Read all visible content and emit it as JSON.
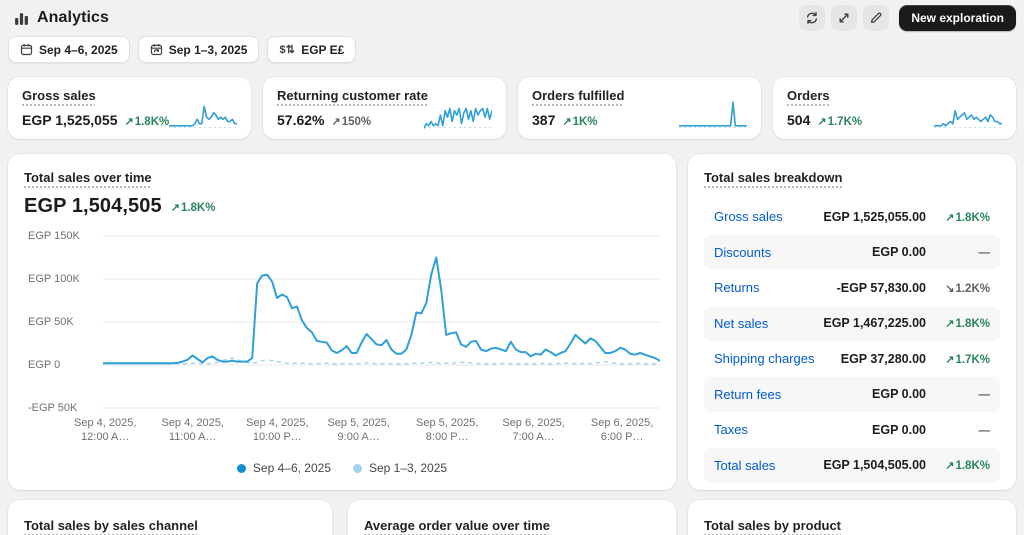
{
  "header": {
    "title": "Analytics",
    "new_exploration_label": "New exploration",
    "icons": [
      "refresh-icon",
      "expand-icon",
      "edit-icon"
    ]
  },
  "filters": [
    {
      "icon": "calendar-icon",
      "label": "Sep 4–6, 2025"
    },
    {
      "icon": "calendar-compare-icon",
      "label": "Sep 1–3, 2025"
    },
    {
      "icon": "currency-icon",
      "icon_glyph": "$⇅",
      "label": "EGP E£"
    }
  ],
  "metrics": [
    {
      "title": "Gross sales",
      "value": "EGP 1,525,055",
      "delta": {
        "dir": "up",
        "text": "1.8K%",
        "color": "green"
      },
      "spark": [
        1,
        1,
        1,
        1,
        1,
        1,
        1,
        1,
        1,
        1,
        1,
        2,
        4,
        2,
        2,
        10,
        5,
        4,
        5,
        7,
        6,
        4,
        5,
        4,
        5,
        3,
        3,
        4,
        2,
        2
      ]
    },
    {
      "title": "Returning customer rate",
      "value": "57.62%",
      "delta": {
        "dir": "up",
        "text": "150%",
        "color": "gray"
      },
      "spark": [
        0,
        2,
        1,
        3,
        1,
        2,
        1,
        6,
        1,
        8,
        5,
        9,
        3,
        8,
        6,
        9,
        2,
        7,
        9,
        4,
        8,
        3,
        9,
        6,
        8,
        9,
        5,
        9,
        4,
        8
      ]
    },
    {
      "title": "Orders fulfilled",
      "value": "387",
      "delta": {
        "dir": "up",
        "text": "1K%",
        "color": "green"
      },
      "spark": [
        1,
        1,
        1,
        1,
        1,
        1,
        1,
        1,
        1,
        1,
        1,
        1,
        1,
        1,
        1,
        1,
        1,
        1,
        1,
        1,
        1,
        1,
        1,
        12,
        1,
        1,
        1,
        1,
        1,
        1
      ]
    },
    {
      "title": "Orders",
      "value": "504",
      "delta": {
        "dir": "up",
        "text": "1.7K%",
        "color": "green"
      },
      "spark": [
        1,
        1,
        1,
        1,
        2,
        1,
        2,
        3,
        2,
        8,
        4,
        5,
        6,
        7,
        4,
        5,
        6,
        4,
        5,
        4,
        3,
        4,
        5,
        3,
        6,
        5,
        3,
        3,
        2,
        2
      ]
    }
  ],
  "main_chart": {
    "title": "Total sales over time",
    "value": "EGP 1,504,505",
    "delta": {
      "dir": "up",
      "text": "1.8K%",
      "color": "green"
    }
  },
  "chart_data": {
    "type": "line",
    "title": "Total sales over time",
    "ylabel": "EGP",
    "ylim_egp": [
      -51000,
      158000
    ],
    "grid": true,
    "y_ticks": [
      "EGP 150K",
      "EGP 100K",
      "EGP 50K",
      "EGP 0",
      "-EGP 50K"
    ],
    "y_tick_values_egp": [
      150000,
      100000,
      50000,
      0,
      -50000
    ],
    "x_ticks": [
      {
        "line1": "Sep 4, 2025,",
        "line2": "12:00 A…",
        "pos": 0.004
      },
      {
        "line1": "Sep 4, 2025,",
        "line2": "11:00 A…",
        "pos": 0.161
      },
      {
        "line1": "Sep 4, 2025,",
        "line2": "10:00 P…",
        "pos": 0.313
      },
      {
        "line1": "Sep 5, 2025,",
        "line2": "9:00 A…",
        "pos": 0.459
      },
      {
        "line1": "Sep 5, 2025,",
        "line2": "8:00 P…",
        "pos": 0.618
      },
      {
        "line1": "Sep 6, 2025,",
        "line2": "7:00 A…",
        "pos": 0.773
      },
      {
        "line1": "Sep 6, 2025,",
        "line2": "6:00 P…",
        "pos": 0.932
      }
    ],
    "legend_position": "bottom-center",
    "legend": [
      {
        "label": "Sep 4–6, 2025",
        "color": "#1290d0"
      },
      {
        "label": "Sep 1–3, 2025",
        "color": "#9fd3ee"
      }
    ],
    "series": [
      {
        "name": "Sep 4–6, 2025",
        "style": "solid",
        "color": "#2f9fd8",
        "values_egp_thousands": [
          2,
          2,
          2,
          2,
          2,
          2,
          2,
          2,
          2,
          2,
          2,
          2,
          2,
          2,
          2,
          2.5,
          4,
          6,
          11,
          7,
          3,
          8,
          10,
          6,
          4,
          4,
          5,
          4,
          4,
          4,
          8,
          95,
          104,
          105,
          97,
          78,
          82,
          79,
          66,
          68,
          52,
          43,
          38,
          28,
          27,
          26,
          17,
          14,
          17,
          22,
          14,
          14,
          26,
          36,
          30,
          24,
          23,
          29,
          18,
          13,
          13,
          18,
          35,
          61,
          60,
          72,
          105,
          125,
          88,
          35,
          37,
          38,
          24,
          21,
          27,
          28,
          18,
          16,
          19,
          20,
          18,
          16,
          27,
          18,
          15,
          15,
          10,
          13,
          12,
          18,
          15,
          11,
          14,
          16,
          25,
          35,
          30,
          25,
          31,
          28,
          21,
          14,
          14,
          16,
          20,
          18,
          13,
          12,
          14,
          12,
          10,
          8,
          5
        ]
      },
      {
        "name": "Sep 1–3, 2025",
        "style": "dashed",
        "color": "#a5d5ee",
        "values_egp_thousands": [
          1.5,
          1.5,
          2,
          1.5,
          1.5,
          1.5,
          1.5,
          1.5,
          1.5,
          1.5,
          1.5,
          1.5,
          1.5,
          1.5,
          1.5,
          1.5,
          1.5,
          1.5,
          2,
          2,
          1.5,
          1.5,
          2,
          3,
          5,
          7,
          8,
          6,
          4,
          3,
          2,
          3,
          5,
          6,
          5,
          4,
          3,
          2,
          2,
          2,
          2,
          2,
          1.5,
          1.5,
          2,
          2,
          1.5,
          1.5,
          1.5,
          2,
          1.5,
          1.5,
          2,
          2.5,
          2,
          1.5,
          1.5,
          2,
          1.5,
          1.5,
          1.5,
          1.5,
          2,
          2,
          2,
          2.5,
          3,
          2.5,
          2,
          2,
          2,
          2.5,
          3,
          3,
          2.5,
          2,
          1.5,
          1.5,
          1.5,
          1.5,
          1.5,
          2,
          1.5,
          1.5,
          1.5,
          1.5,
          1.5,
          1.5,
          2,
          1.5,
          1.5,
          1.5,
          2,
          2,
          2,
          1.5,
          1.5,
          2,
          1.5,
          2,
          3,
          4,
          3,
          2,
          1.5,
          1.5,
          1.5,
          2,
          1.5,
          1.5,
          1.5,
          1.5,
          1.5
        ]
      }
    ]
  },
  "breakdown": {
    "title": "Total sales breakdown",
    "rows": [
      {
        "label": "Gross sales",
        "amount": "EGP 1,525,055.00",
        "delta": {
          "dir": "up",
          "text": "1.8K%",
          "color": "green"
        },
        "shaded": false
      },
      {
        "label": "Discounts",
        "amount": "EGP 0.00",
        "delta": {
          "dir": "none",
          "text": "—",
          "color": "gray"
        },
        "shaded": true
      },
      {
        "label": "Returns",
        "amount": "-EGP 57,830.00",
        "delta": {
          "dir": "down",
          "text": "1.2K%",
          "color": "gray"
        },
        "shaded": false
      },
      {
        "label": "Net sales",
        "amount": "EGP 1,467,225.00",
        "delta": {
          "dir": "up",
          "text": "1.8K%",
          "color": "green"
        },
        "shaded": true
      },
      {
        "label": "Shipping charges",
        "amount": "EGP 37,280.00",
        "delta": {
          "dir": "up",
          "text": "1.7K%",
          "color": "green"
        },
        "shaded": false
      },
      {
        "label": "Return fees",
        "amount": "EGP 0.00",
        "delta": {
          "dir": "none",
          "text": "—",
          "color": "gray"
        },
        "shaded": true
      },
      {
        "label": "Taxes",
        "amount": "EGP 0.00",
        "delta": {
          "dir": "none",
          "text": "—",
          "color": "gray"
        },
        "shaded": false
      },
      {
        "label": "Total sales",
        "amount": "EGP 1,504,505.00",
        "delta": {
          "dir": "up",
          "text": "1.8K%",
          "color": "green"
        },
        "shaded": true
      }
    ]
  },
  "bottom_cards": [
    {
      "title": "Total sales by sales channel"
    },
    {
      "title": "Average order value over time"
    },
    {
      "title": "Total sales by product"
    }
  ],
  "colors": {
    "page_bg": "#f1f1f1",
    "accent_blue": "#2f9fd8",
    "comparison_blue": "#a5d5ee",
    "link_blue": "#005bd3",
    "positive_green": "#29845a",
    "neutral_gray": "#616161",
    "grid_line": "#e9e9e9",
    "dark_button_bg": "#1a1a1a"
  }
}
